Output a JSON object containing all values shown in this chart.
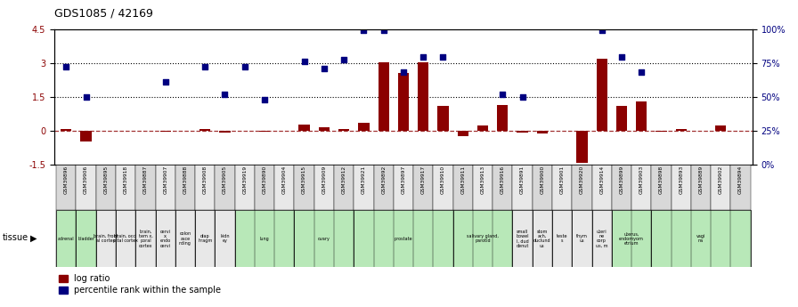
{
  "title": "GDS1085 / 42169",
  "samples": [
    "GSM39896",
    "GSM39906",
    "GSM39895",
    "GSM39918",
    "GSM39887",
    "GSM39907",
    "GSM39888",
    "GSM39908",
    "GSM39905",
    "GSM39919",
    "GSM39890",
    "GSM39904",
    "GSM39915",
    "GSM39909",
    "GSM39912",
    "GSM39921",
    "GSM39892",
    "GSM39897",
    "GSM39917",
    "GSM39910",
    "GSM39911",
    "GSM39913",
    "GSM39916",
    "GSM39891",
    "GSM39900",
    "GSM39901",
    "GSM39920",
    "GSM39914",
    "GSM39899",
    "GSM39903",
    "GSM39898",
    "GSM39893",
    "GSM39889",
    "GSM39902",
    "GSM39894"
  ],
  "log_ratio": [
    0.08,
    -0.5,
    0.0,
    0.0,
    0.0,
    -0.05,
    0.0,
    0.07,
    -0.08,
    0.0,
    -0.05,
    0.0,
    0.28,
    0.15,
    0.07,
    0.35,
    3.02,
    2.55,
    3.02,
    1.1,
    -0.25,
    0.22,
    1.12,
    -0.08,
    -0.12,
    0.0,
    -1.45,
    3.2,
    1.1,
    1.3,
    -0.05,
    0.05,
    0.0,
    0.22,
    0.0
  ],
  "pct_rank_left": [
    2.85,
    1.47,
    null,
    null,
    null,
    2.15,
    null,
    2.85,
    1.6,
    2.85,
    1.35,
    null,
    3.05,
    2.75,
    3.15,
    4.47,
    4.47,
    2.6,
    3.25,
    3.25,
    null,
    null,
    1.6,
    1.5,
    null,
    null,
    null,
    4.47,
    3.25,
    2.6,
    null,
    null,
    null,
    null,
    null
  ],
  "tissues": [
    {
      "label": "adrenal",
      "start": 0,
      "end": 1,
      "color": "#b8e8b8"
    },
    {
      "label": "bladder",
      "start": 1,
      "end": 2,
      "color": "#b8e8b8"
    },
    {
      "label": "brain, front\nal cortex",
      "start": 2,
      "end": 3,
      "color": "#e8e8e8"
    },
    {
      "label": "brain, occi\npital cortex",
      "start": 3,
      "end": 4,
      "color": "#e8e8e8"
    },
    {
      "label": "brain,\ntem x,\nporal\ncortex",
      "start": 4,
      "end": 5,
      "color": "#e8e8e8"
    },
    {
      "label": "cervi\nx,\nendo\ncervi",
      "start": 5,
      "end": 6,
      "color": "#e8e8e8"
    },
    {
      "label": "colon\nasce\nnding",
      "start": 6,
      "end": 7,
      "color": "#e8e8e8"
    },
    {
      "label": "diap\nhragm",
      "start": 7,
      "end": 8,
      "color": "#e8e8e8"
    },
    {
      "label": "kidn\ney",
      "start": 8,
      "end": 9,
      "color": "#e8e8e8"
    },
    {
      "label": "lung",
      "start": 9,
      "end": 12,
      "color": "#b8e8b8"
    },
    {
      "label": "ovary",
      "start": 12,
      "end": 15,
      "color": "#b8e8b8"
    },
    {
      "label": "prostate",
      "start": 15,
      "end": 20,
      "color": "#b8e8b8"
    },
    {
      "label": "salivary gland,\nparotid",
      "start": 20,
      "end": 23,
      "color": "#b8e8b8"
    },
    {
      "label": "small\nbowel\nl, dud\ndenut",
      "start": 23,
      "end": 24,
      "color": "#e8e8e8"
    },
    {
      "label": "stom\nach,\nduclund\nus",
      "start": 24,
      "end": 25,
      "color": "#e8e8e8"
    },
    {
      "label": "teste\ns",
      "start": 25,
      "end": 26,
      "color": "#e8e8e8"
    },
    {
      "label": "thym\nus",
      "start": 26,
      "end": 27,
      "color": "#e8e8e8"
    },
    {
      "label": "uteri\nne\ncorp\nus, m",
      "start": 27,
      "end": 28,
      "color": "#e8e8e8"
    },
    {
      "label": "uterus,\nendomyom\netrium",
      "start": 28,
      "end": 30,
      "color": "#b8e8b8"
    },
    {
      "label": "vagi\nna",
      "start": 30,
      "end": 35,
      "color": "#b8e8b8"
    }
  ],
  "ylim": [
    -1.5,
    4.5
  ],
  "yticks_left": [
    -1.5,
    0.0,
    1.5,
    3.0,
    4.5
  ],
  "ytick_labels_left": [
    "-1.5",
    "0",
    "1.5",
    "3",
    "4.5"
  ],
  "ytick_labels_right": [
    "0%",
    "25%",
    "50%",
    "75%",
    "100%"
  ],
  "hlines_dotted": [
    1.5,
    3.0
  ],
  "bar_color": "#8B0000",
  "dot_color": "#000080",
  "dot_size": 22,
  "n_samples": 35
}
